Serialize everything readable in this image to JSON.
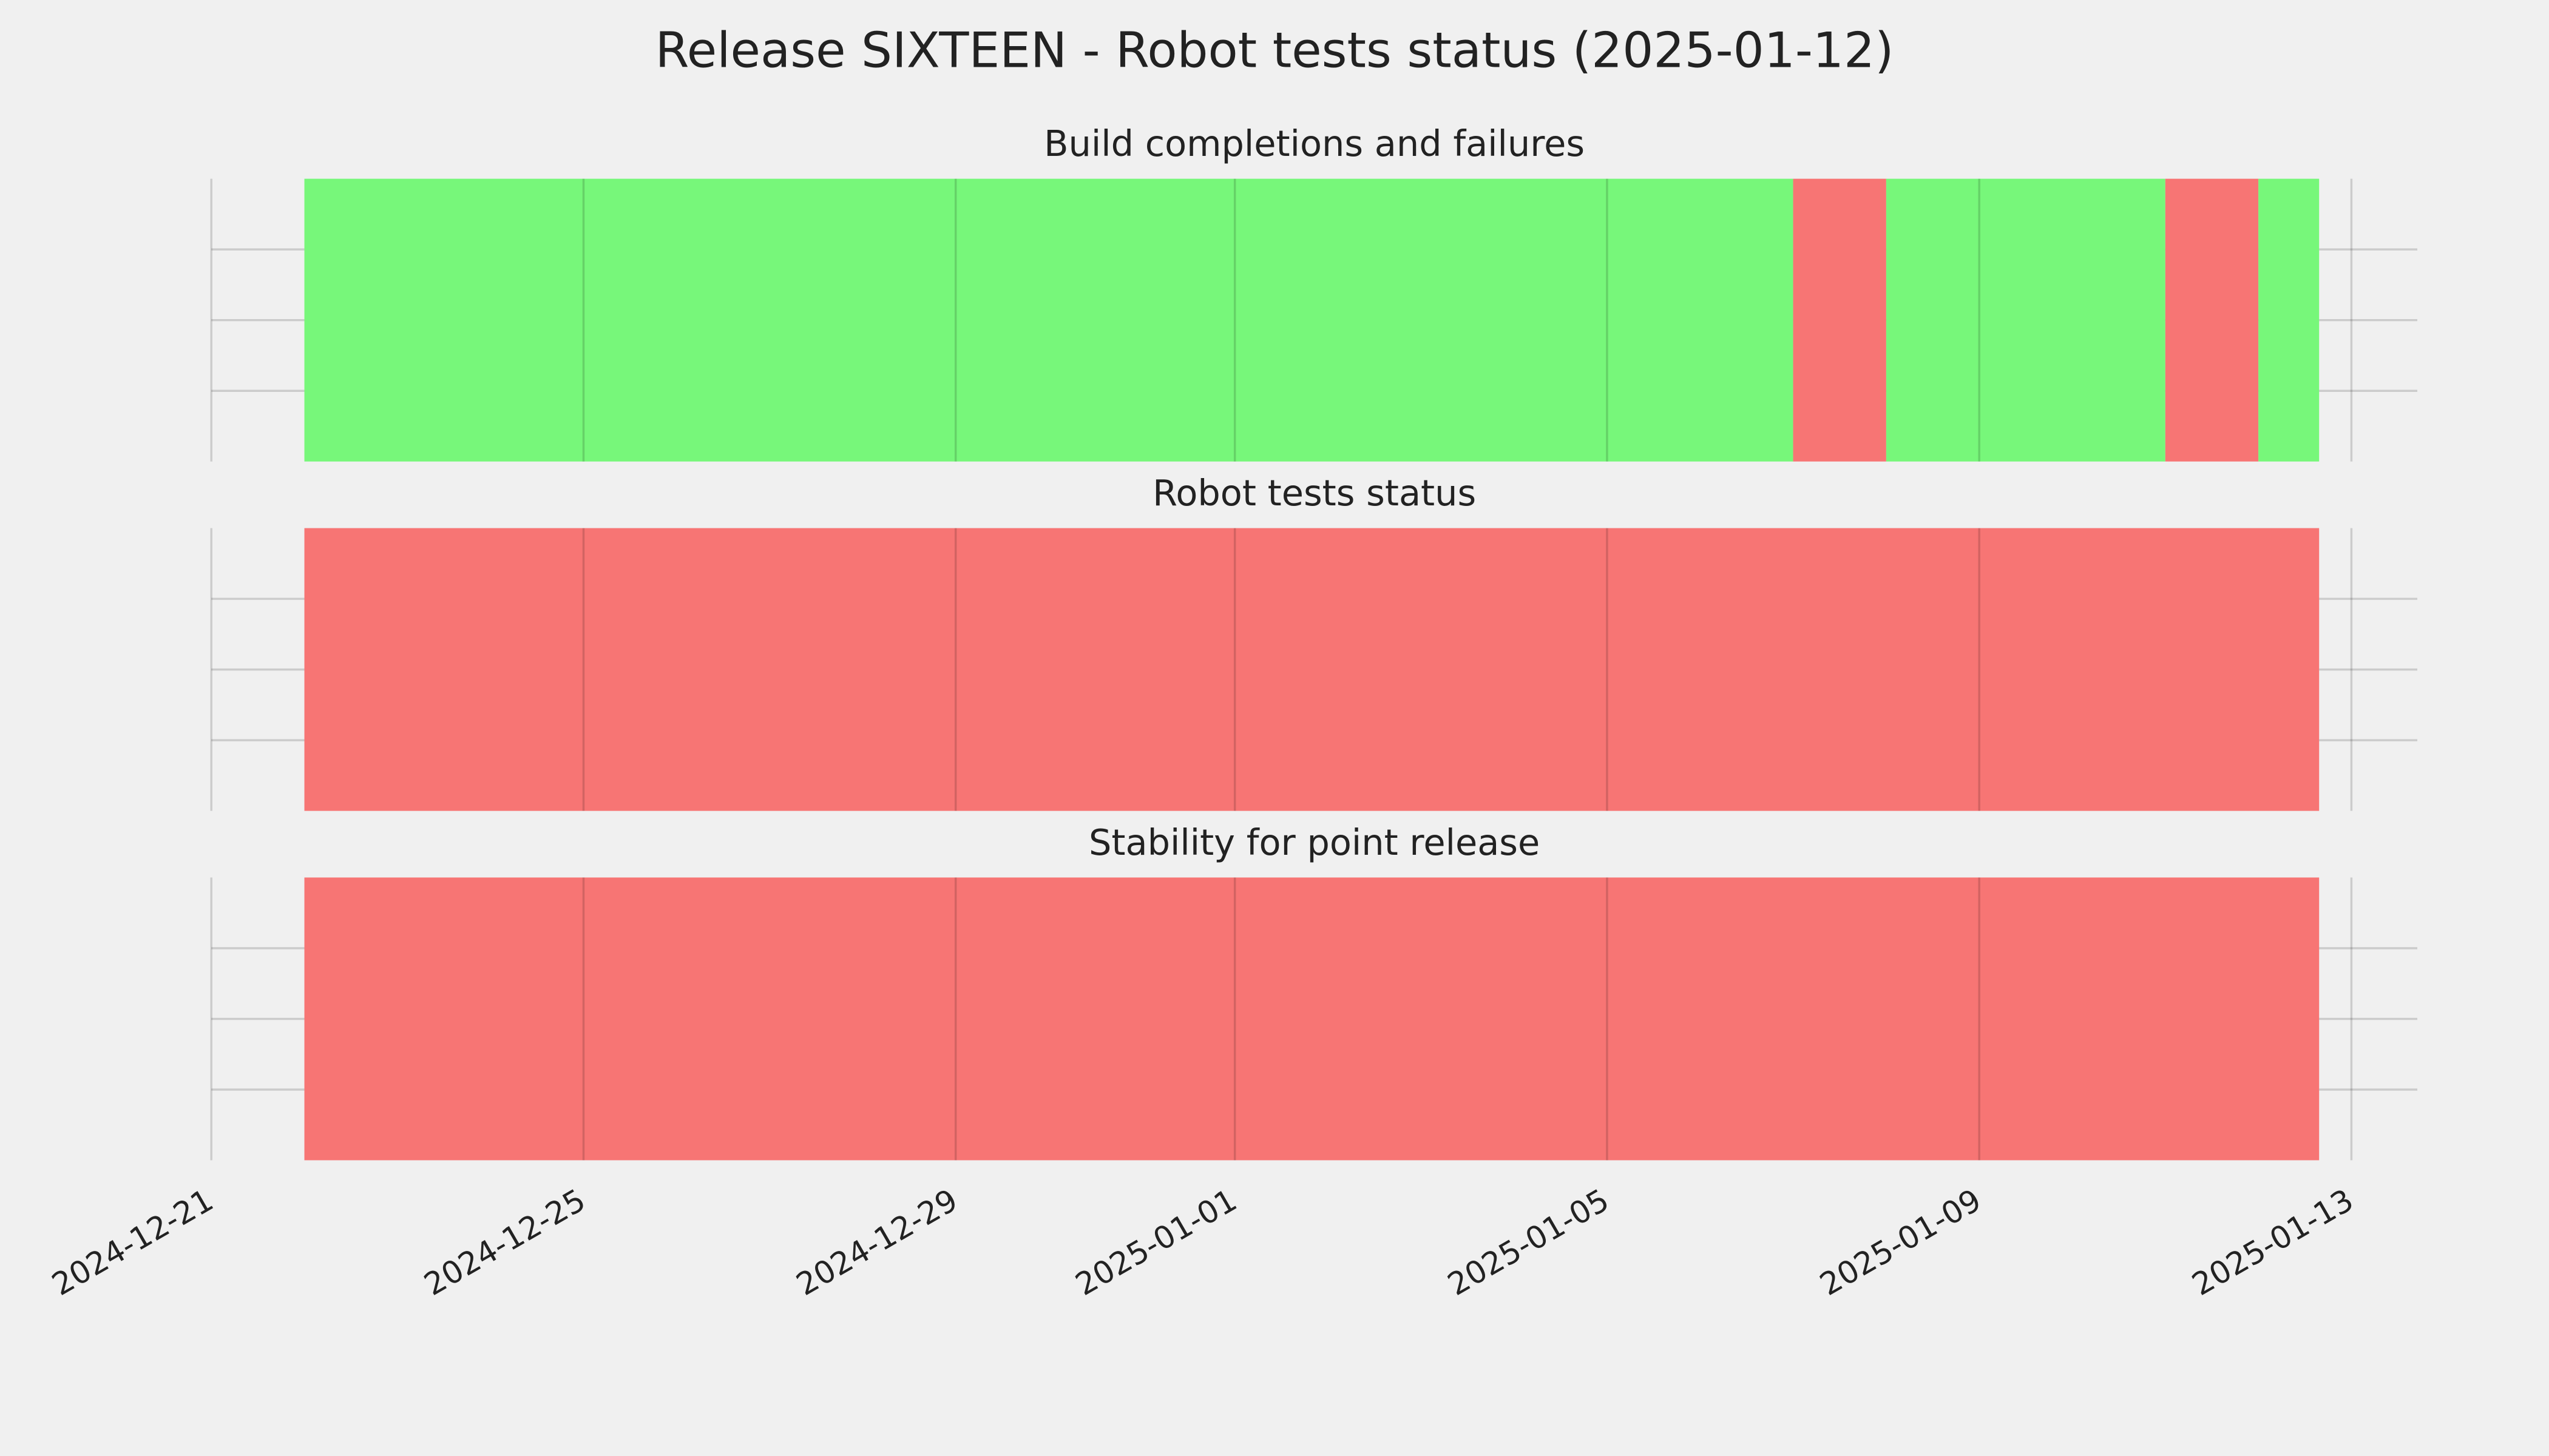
{
  "title": "Release SIXTEEN - Robot tests status (2025-01-12)",
  "chart_data": [
    {
      "type": "timeline",
      "title": "Build completions and failures",
      "xlim": [
        "2024-12-21T00:00",
        "2025-01-13T17:00"
      ],
      "xticks": [
        "2024-12-21",
        "2024-12-25",
        "2024-12-29",
        "2025-01-01",
        "2025-01-05",
        "2025-01-09",
        "2025-01-13"
      ],
      "ylim": [
        0,
        1
      ],
      "yticks": [
        0.25,
        0.5,
        0.75
      ],
      "grid": true,
      "segments": [
        {
          "start": "2024-12-22T00:00",
          "end": "2025-01-07T00:00",
          "color": "#77f77a"
        },
        {
          "start": "2025-01-07T00:00",
          "end": "2025-01-08T00:00",
          "color": "#f77574"
        },
        {
          "start": "2025-01-08T00:00",
          "end": "2025-01-11T00:00",
          "color": "#77f77a"
        },
        {
          "start": "2025-01-11T00:00",
          "end": "2025-01-12T00:00",
          "color": "#f77574"
        },
        {
          "start": "2025-01-12T00:00",
          "end": "2025-01-12T15:40",
          "color": "#77f77a"
        }
      ]
    },
    {
      "type": "timeline",
      "title": "Robot tests status",
      "xlim": [
        "2024-12-21T00:00",
        "2025-01-13T17:00"
      ],
      "xticks": [
        "2024-12-21",
        "2024-12-25",
        "2024-12-29",
        "2025-01-01",
        "2025-01-05",
        "2025-01-09",
        "2025-01-13"
      ],
      "ylim": [
        0,
        1
      ],
      "yticks": [
        0.25,
        0.5,
        0.75
      ],
      "grid": true,
      "segments": [
        {
          "start": "2024-12-22T00:00",
          "end": "2025-01-12T15:40",
          "color": "#f77574"
        }
      ]
    },
    {
      "type": "timeline",
      "title": "Stability for point release",
      "xlim": [
        "2024-12-21T00:00",
        "2025-01-13T17:00"
      ],
      "xticks": [
        "2024-12-21",
        "2024-12-25",
        "2024-12-29",
        "2025-01-01",
        "2025-01-05",
        "2025-01-09",
        "2025-01-13"
      ],
      "ylim": [
        0,
        1
      ],
      "yticks": [
        0.25,
        0.5,
        0.75
      ],
      "grid": true,
      "segments": [
        {
          "start": "2024-12-22T00:00",
          "end": "2025-01-12T15:40",
          "color": "#f77574"
        }
      ]
    }
  ]
}
